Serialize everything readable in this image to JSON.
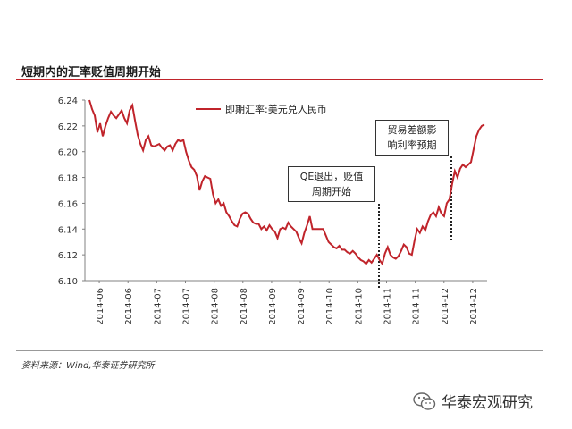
{
  "header": {
    "title": "短期内的汇率贬值周期开始"
  },
  "footer": {
    "source": "资料来源：Wind,华泰证券研究所",
    "brand": "华泰宏观研究"
  },
  "icons": {
    "brand_logo": "wechat-icon"
  },
  "colors": {
    "accent": "#c0242b",
    "line": "#c0242b"
  },
  "chart_data": {
    "type": "line",
    "ylim": [
      6.1,
      6.24
    ],
    "yticks": [
      "6.10",
      "6.12",
      "6.14",
      "6.16",
      "6.18",
      "6.20",
      "6.22",
      "6.24"
    ],
    "xticks": [
      "2014-06",
      "2014-06",
      "2014-07",
      "2014-07",
      "2014-08",
      "2014-08",
      "2014-09",
      "2014-09",
      "2014-10",
      "2014-10",
      "2014-11",
      "2014-11",
      "2014-12",
      "2014-12"
    ],
    "series": [
      {
        "name": "即期汇率:美元兑人民币",
        "values": [
          6.24,
          6.233,
          6.228,
          6.215,
          6.222,
          6.212,
          6.22,
          6.226,
          6.231,
          6.228,
          6.226,
          6.229,
          6.232,
          6.226,
          6.222,
          6.232,
          6.236,
          6.224,
          6.213,
          6.206,
          6.201,
          6.209,
          6.212,
          6.205,
          6.204,
          6.205,
          6.206,
          6.203,
          6.201,
          6.204,
          6.205,
          6.201,
          6.206,
          6.209,
          6.208,
          6.209,
          6.2,
          6.193,
          6.188,
          6.186,
          6.181,
          6.17,
          6.177,
          6.181,
          6.18,
          6.179,
          6.167,
          6.16,
          6.163,
          6.158,
          6.16,
          6.153,
          6.15,
          6.146,
          6.143,
          6.142,
          6.148,
          6.152,
          6.153,
          6.152,
          6.148,
          6.145,
          6.144,
          6.144,
          6.14,
          6.142,
          6.139,
          6.143,
          6.14,
          6.138,
          6.133,
          6.14,
          6.141,
          6.14,
          6.145,
          6.142,
          6.14,
          6.138,
          6.133,
          6.129,
          6.137,
          6.143,
          6.15,
          6.14,
          6.14,
          6.14,
          6.14,
          6.14,
          6.135,
          6.13,
          6.128,
          6.126,
          6.125,
          6.127,
          6.124,
          6.124,
          6.122,
          6.121,
          6.123,
          6.121,
          6.118,
          6.116,
          6.115,
          6.113,
          6.116,
          6.114,
          6.117,
          6.12,
          6.116,
          6.113,
          6.121,
          6.126,
          6.12,
          6.118,
          6.117,
          6.119,
          6.123,
          6.128,
          6.126,
          6.121,
          6.12,
          6.131,
          6.14,
          6.137,
          6.142,
          6.139,
          6.146,
          6.151,
          6.153,
          6.15,
          6.157,
          6.152,
          6.15,
          6.16,
          6.163,
          6.175,
          6.185,
          6.18,
          6.187,
          6.19,
          6.188,
          6.19,
          6.192,
          6.202,
          6.212,
          6.217,
          6.22,
          6.221
        ]
      }
    ],
    "annotations": [
      {
        "lines": [
          "QE退出，贬值",
          "周期开始"
        ]
      },
      {
        "lines": [
          "贸易差额影",
          "响利率预期"
        ]
      }
    ],
    "grid": false,
    "legend": "top-left"
  }
}
